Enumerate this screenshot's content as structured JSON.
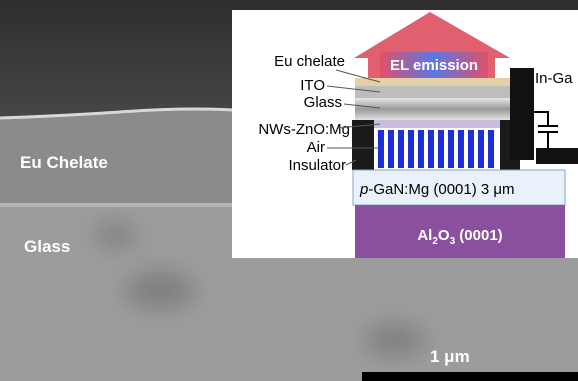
{
  "sem": {
    "layer_labels": [
      "Eu Chelate",
      "Glass"
    ],
    "scale_bar": "1 μm"
  },
  "inset": {
    "emission": "EL emission",
    "labels": [
      "Eu chelate",
      "ITO",
      "Glass",
      "NWs-ZnO:Mg",
      "Air",
      "Insulator"
    ],
    "contact": "In-Ga",
    "gan": [
      "p",
      "-GaN:Mg (0001)  3 μm"
    ],
    "substrate": [
      "Al",
      "2",
      "O",
      "3",
      " (0001)"
    ]
  }
}
